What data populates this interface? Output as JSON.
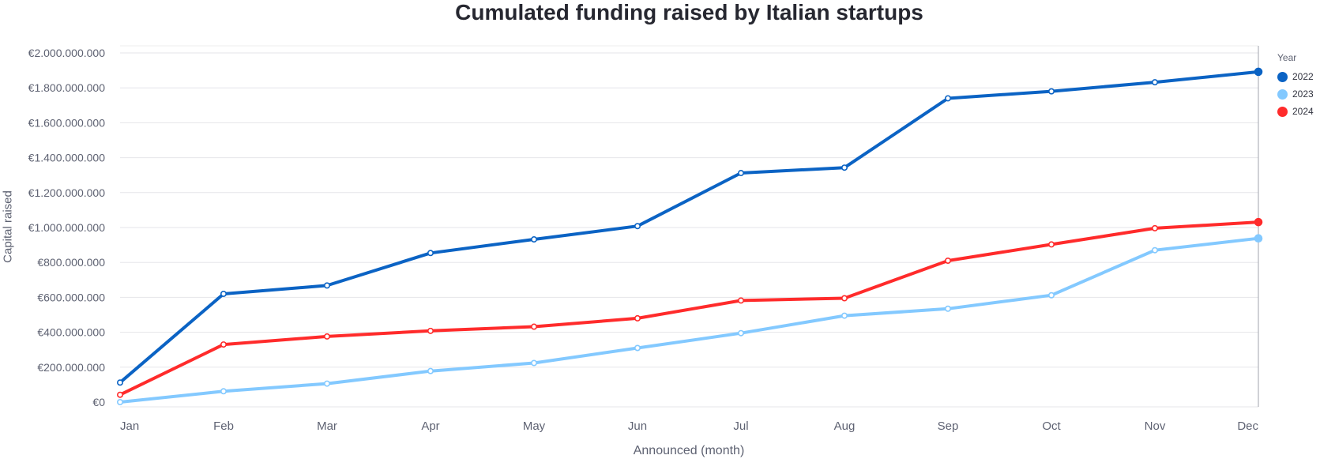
{
  "chart_data": {
    "type": "line",
    "title": "Cumulated funding raised by Italian startups",
    "xlabel": "Announced (month)",
    "ylabel": "Capital raised",
    "categories": [
      "Jan",
      "Feb",
      "Mar",
      "Apr",
      "May",
      "Jun",
      "Jul",
      "Aug",
      "Sep",
      "Oct",
      "Nov",
      "Dec"
    ],
    "ylim": [
      0,
      2000000000
    ],
    "yticks": [
      {
        "value": 0,
        "label": "€0"
      },
      {
        "value": 200000000,
        "label": "€200.000.000"
      },
      {
        "value": 400000000,
        "label": "€400.000.000"
      },
      {
        "value": 600000000,
        "label": "€600.000.000"
      },
      {
        "value": 800000000,
        "label": "€800.000.000"
      },
      {
        "value": 1000000000,
        "label": "€1.000.000.000"
      },
      {
        "value": 1200000000,
        "label": "€1.200.000.000"
      },
      {
        "value": 1400000000,
        "label": "€1.400.000.000"
      },
      {
        "value": 1600000000,
        "label": "€1.600.000.000"
      },
      {
        "value": 1800000000,
        "label": "€1.800.000.000"
      },
      {
        "value": 2000000000,
        "label": "€2.000.000.000"
      }
    ],
    "legend": {
      "title": "Year",
      "position": "top-right"
    },
    "grid": true,
    "series": [
      {
        "name": "2022",
        "color": "#0b63c4",
        "values": [
          112000000,
          620000000,
          668000000,
          854000000,
          932000000,
          1008000000,
          1312000000,
          1343000000,
          1740000000,
          1780000000,
          1832000000,
          1892000000
        ]
      },
      {
        "name": "2023",
        "color": "#83c9ff",
        "values": [
          0,
          62000000,
          106000000,
          178000000,
          224000000,
          310000000,
          395000000,
          495000000,
          535000000,
          612000000,
          870000000,
          938000000
        ]
      },
      {
        "name": "2024",
        "color": "#ff2b2b",
        "values": [
          42000000,
          330000000,
          376000000,
          408000000,
          432000000,
          480000000,
          582000000,
          595000000,
          810000000,
          903000000,
          996000000,
          1031000000
        ]
      }
    ]
  }
}
